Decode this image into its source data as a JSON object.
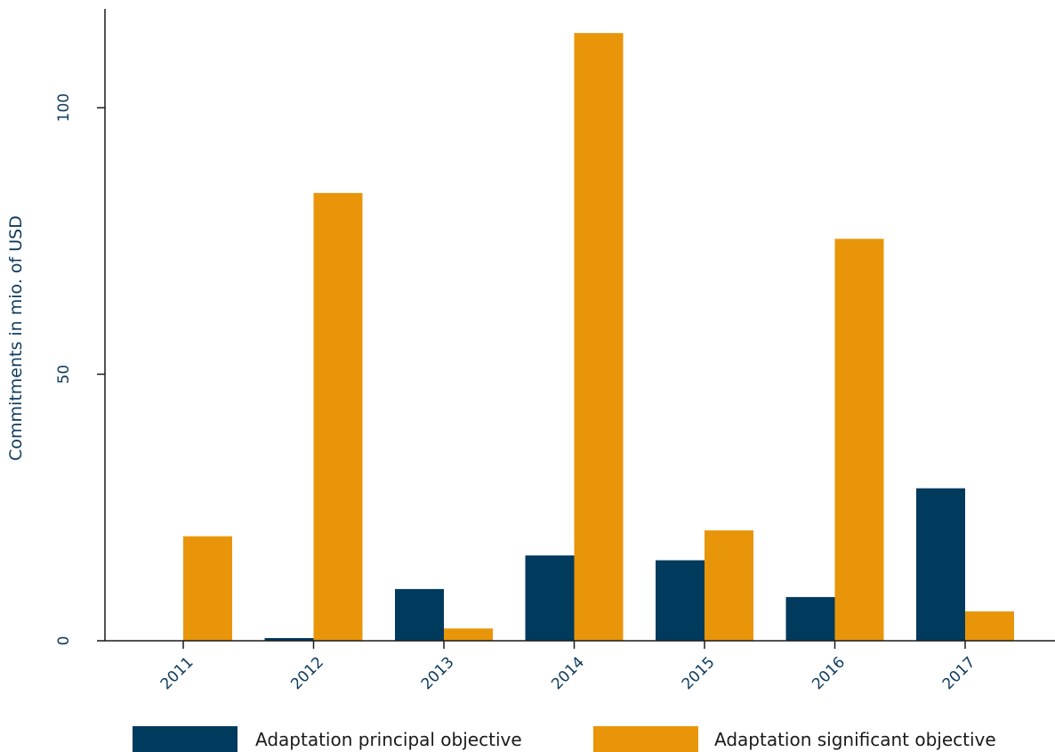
{
  "chart_data": {
    "type": "bar",
    "categories": [
      "2011",
      "2012",
      "2013",
      "2014",
      "2015",
      "2016",
      "2017"
    ],
    "series": [
      {
        "name": "Adaptation principal objective",
        "color": "#003a5d",
        "values": [
          0,
          0.5,
          9.7,
          16,
          15.1,
          8.2,
          28.6
        ]
      },
      {
        "name": "Adaptation significant objective",
        "color": "#e9950a",
        "values": [
          19.6,
          84,
          2.3,
          114,
          20.7,
          75.4,
          5.5
        ]
      }
    ],
    "title": "",
    "xlabel": "",
    "ylabel": "Commitments in mio. of USD",
    "ylim": [
      0,
      117
    ],
    "yticks": [
      0,
      50,
      100
    ],
    "grid": false,
    "legend_position": "bottom"
  }
}
